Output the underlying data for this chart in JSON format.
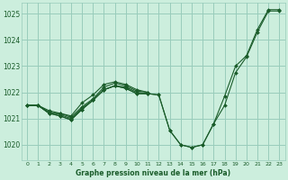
{
  "title": "Graphe pression niveau de la mer (hPa)",
  "bg_color": "#cceedd",
  "grid_color": "#99ccbb",
  "line_color": "#1a5c2a",
  "marker_color": "#1a5c2a",
  "xlim": [
    -0.5,
    23.5
  ],
  "ylim": [
    1019.4,
    1025.4
  ],
  "yticks": [
    1020,
    1021,
    1022,
    1023,
    1024,
    1025
  ],
  "xtick_labels": [
    "0",
    "1",
    "2",
    "3",
    "4",
    "5",
    "6",
    "7",
    "8",
    "9",
    "10",
    "11",
    "12",
    "13",
    "14",
    "15",
    "16",
    "17",
    "18",
    "19",
    "20",
    "21",
    "22",
    "23"
  ],
  "series": [
    {
      "x": [
        0,
        1,
        2,
        3,
        4,
        5,
        6,
        7,
        8,
        9,
        10,
        11
      ],
      "y": [
        1021.5,
        1021.5,
        1021.2,
        1021.2,
        1021.1,
        1021.6,
        1021.9,
        1022.3,
        1022.4,
        1022.3,
        1022.1,
        1022.0
      ]
    },
    {
      "x": [
        0,
        1,
        2,
        3,
        4,
        5,
        6,
        7,
        8,
        9,
        10,
        11
      ],
      "y": [
        1021.5,
        1021.5,
        1021.3,
        1021.2,
        1021.05,
        1021.45,
        1021.75,
        1022.2,
        1022.35,
        1022.25,
        1022.05,
        1022.0
      ]
    },
    {
      "x": [
        0,
        1,
        2,
        3,
        4,
        5,
        6,
        7,
        8,
        9,
        10,
        11
      ],
      "y": [
        1021.5,
        1021.5,
        1021.25,
        1021.15,
        1021.0,
        1021.4,
        1021.7,
        1022.1,
        1022.25,
        1022.2,
        1022.0,
        1021.95
      ]
    },
    {
      "x": [
        0,
        1,
        2,
        3,
        4,
        5,
        6,
        7,
        8,
        9,
        10,
        11,
        12,
        13,
        14,
        15,
        16,
        17,
        18,
        19,
        20,
        21,
        22,
        23
      ],
      "y": [
        1021.5,
        1021.5,
        1021.2,
        1021.1,
        1020.95,
        1021.35,
        1021.7,
        1022.1,
        1022.25,
        1022.15,
        1021.95,
        1021.95,
        1021.9,
        1020.55,
        1020.0,
        1019.9,
        1020.0,
        1020.8,
        1021.5,
        1022.75,
        1023.35,
        1024.3,
        1025.1,
        1025.1
      ]
    },
    {
      "x": [
        0,
        1,
        2,
        3,
        4,
        5,
        6,
        7,
        8,
        9,
        10,
        11,
        12,
        13,
        14,
        15,
        16,
        17,
        18,
        19,
        20,
        21,
        22,
        23
      ],
      "y": [
        1021.5,
        1021.5,
        1021.2,
        1021.1,
        1020.95,
        1021.35,
        1021.7,
        1022.1,
        1022.25,
        1022.15,
        1021.95,
        1021.95,
        1021.9,
        1020.55,
        1020.0,
        1019.9,
        1020.0,
        1020.8,
        1021.85,
        1023.0,
        1023.4,
        1024.4,
        1025.15,
        1025.15
      ]
    }
  ]
}
